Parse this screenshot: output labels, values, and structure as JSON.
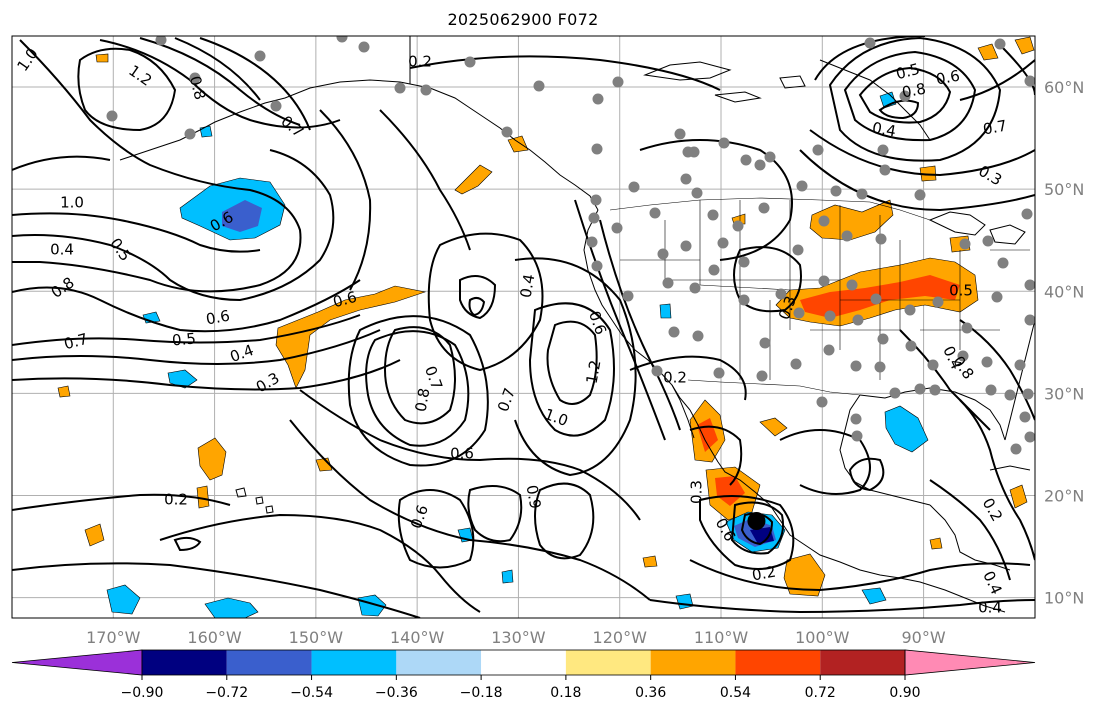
{
  "title": "2025062900 F072",
  "map": {
    "lon_range": [
      -180,
      -79
    ],
    "lat_range": [
      8,
      65
    ],
    "graticule_lons": [
      -170,
      -160,
      -150,
      -140,
      -130,
      -120,
      -110,
      -100,
      -90
    ],
    "graticule_lats": [
      10,
      20,
      30,
      40,
      50,
      60
    ],
    "lon_tick_labels": [
      "170°W",
      "160°W",
      "150°W",
      "140°W",
      "130°W",
      "120°W",
      "110°W",
      "100°W",
      "90°W"
    ],
    "lat_tick_labels": [
      "10°N",
      "20°N",
      "30°N",
      "40°N",
      "50°N",
      "60°N"
    ],
    "contour_labels": [
      "1.0",
      "1.2",
      "0.8",
      "0.7",
      "0.2",
      "0.5",
      "0.6",
      "0.8",
      "0.4",
      "0.7",
      "0.3",
      "1.0",
      "0.6",
      "0.5",
      "0.4",
      "0.8",
      "0.6",
      "0.7",
      "0.5",
      "0.6",
      "0.4",
      "0.3",
      "0.4",
      "0.8",
      "0.7",
      "0.7",
      "1.0",
      "0.6",
      "1.2",
      "0.6",
      "0.2",
      "0.6",
      "0.9",
      "0.2",
      "0.3",
      "0.6",
      "0.2",
      "0.3",
      "0.4",
      "0.8",
      "0.5",
      "0.2",
      "0.4",
      "0.4"
    ],
    "storm_marker": {
      "lon": -106.5,
      "lat": 17.5
    },
    "colors": {
      "land_outline": "#000000",
      "grid": "#b0b0b0",
      "station": "#808080",
      "contour": "#000000"
    }
  },
  "colorbar": {
    "tick_labels": [
      "−0.90",
      "−0.72",
      "−0.54",
      "−0.36",
      "−0.18",
      "0.18",
      "0.36",
      "0.54",
      "0.72",
      "0.90"
    ],
    "colors": [
      "#9b30d9",
      "#000080",
      "#3a5fcd",
      "#00bfff",
      "#add8f7",
      "#ffffff",
      "#ffe880",
      "#ffa500",
      "#ff4500",
      "#b22222",
      "#ff8ab4"
    ]
  }
}
